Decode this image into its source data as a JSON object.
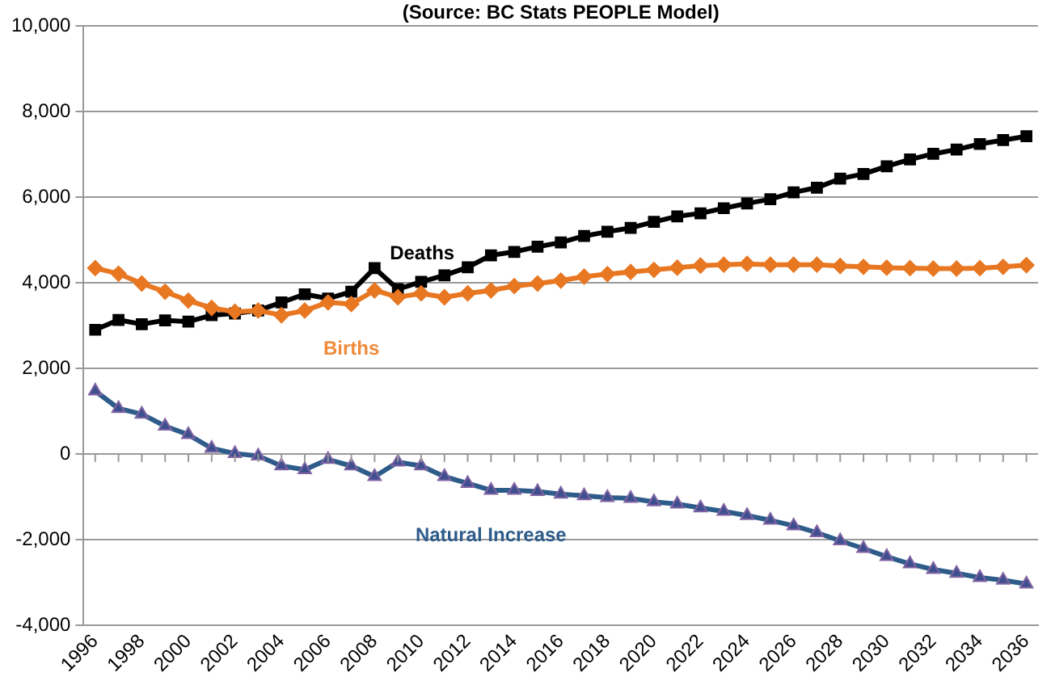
{
  "chart_data": {
    "type": "line",
    "title": "(Source: BC Stats PEOPLE Model)",
    "categories": [
      "1996",
      null,
      "1998",
      null,
      "2000",
      null,
      "2002",
      null,
      "2004",
      null,
      "2006",
      null,
      "2008",
      null,
      "2010",
      null,
      "2012",
      null,
      "2014",
      null,
      "2016",
      null,
      "2018",
      null,
      "2020",
      null,
      "2022",
      null,
      "2024",
      null,
      "2026",
      null,
      "2028",
      null,
      "2030",
      null,
      "2032",
      null,
      "2034",
      null,
      "2036"
    ],
    "series": [
      {
        "name": "Deaths",
        "color": "#000000",
        "marker": "square",
        "values": [
          2900,
          3130,
          3030,
          3120,
          3090,
          3240,
          3280,
          3350,
          3540,
          3730,
          3630,
          3790,
          4340,
          3850,
          4020,
          4170,
          4360,
          4640,
          4720,
          4840,
          4940,
          5090,
          5190,
          5280,
          5420,
          5550,
          5620,
          5740,
          5850,
          5950,
          6110,
          6220,
          6430,
          6540,
          6720,
          6880,
          7010,
          7110,
          7240,
          7330,
          7420
        ]
      },
      {
        "name": "Births",
        "color": "#e87722",
        "marker": "diamond",
        "values": [
          4340,
          4210,
          3980,
          3790,
          3580,
          3410,
          3320,
          3350,
          3240,
          3350,
          3540,
          3500,
          3820,
          3660,
          3750,
          3660,
          3750,
          3820,
          3920,
          3980,
          4050,
          4140,
          4200,
          4250,
          4300,
          4350,
          4400,
          4420,
          4440,
          4420,
          4420,
          4420,
          4390,
          4370,
          4350,
          4340,
          4330,
          4330,
          4340,
          4370,
          4410
        ]
      },
      {
        "name": "Natural Increase",
        "color": "#2e5c8a",
        "marker": "triangle",
        "values": [
          1470,
          1060,
          930,
          650,
          450,
          130,
          10,
          -50,
          -280,
          -370,
          -130,
          -280,
          -530,
          -190,
          -280,
          -530,
          -690,
          -850,
          -850,
          -880,
          -940,
          -980,
          -1020,
          -1040,
          -1120,
          -1170,
          -1260,
          -1340,
          -1440,
          -1550,
          -1680,
          -1840,
          -2030,
          -2210,
          -2400,
          -2570,
          -2700,
          -2790,
          -2890,
          -2950,
          -3040
        ]
      }
    ],
    "ylim": [
      -4000,
      10000
    ],
    "yticks": [
      {
        "value": -4000,
        "label": "-4,000"
      },
      {
        "value": -2000,
        "label": "-2,000"
      },
      0,
      {
        "value": 2000,
        "label": "2,000"
      },
      {
        "value": 4000,
        "label": "4,000"
      },
      {
        "value": 6000,
        "label": "6,000"
      },
      {
        "value": 8000,
        "label": "8,000"
      },
      {
        "value": 10000,
        "label": "10,000"
      }
    ],
    "grid": "y",
    "legend": false
  }
}
